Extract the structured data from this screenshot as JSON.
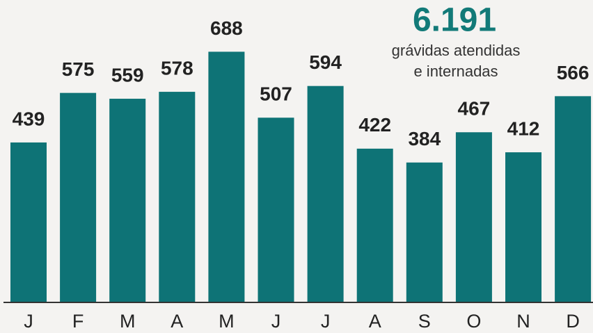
{
  "chart_data": {
    "type": "bar",
    "categories": [
      "J",
      "F",
      "M",
      "A",
      "M",
      "J",
      "J",
      "A",
      "S",
      "O",
      "N",
      "D"
    ],
    "values": [
      439,
      575,
      559,
      578,
      688,
      507,
      594,
      422,
      384,
      467,
      412,
      566
    ],
    "color": "#0e7376",
    "ylim": [
      0,
      830
    ],
    "annotation": {
      "total": "6.191",
      "text": [
        "grávidas atendidas",
        "e internadas"
      ]
    }
  }
}
